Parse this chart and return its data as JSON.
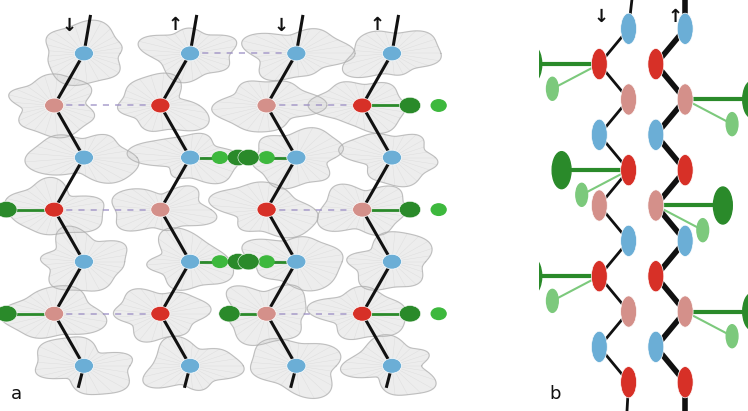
{
  "bg_color": "#ffffff",
  "label_a": "a",
  "label_b": "b",
  "arrow_down": "↓",
  "arrow_up": "↑",
  "blue": "#6baed6",
  "red": "#d73027",
  "pink": "#d4908a",
  "green_dark": "#2a8a2a",
  "green_mid": "#3db83d",
  "green_light": "#7cc97c",
  "purple": "#9b8ec4",
  "mesh_face": "#d8d8d8",
  "mesh_edge": "#aaaaaa",
  "black": "#111111",
  "white": "#ffffff"
}
